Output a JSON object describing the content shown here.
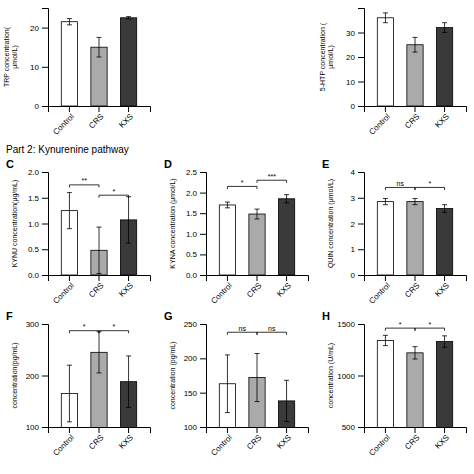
{
  "title": "Part 2: Kynurenine pathway",
  "chart_data": [
    {
      "type": "bar",
      "ylabel": "TRP concentration(\nµmol/L)",
      "categories": [
        "Control",
        "CRS",
        "KXS"
      ],
      "values": [
        21.5,
        15,
        22.5
      ],
      "errors": [
        0.8,
        2.5,
        0.3
      ],
      "colors": [
        "white",
        "#aaaaaa",
        "#3a3a3a"
      ],
      "ylim": [
        0,
        25
      ],
      "yticks": [
        0,
        10,
        20
      ]
    },
    {
      "type": "bar",
      "ylabel": "5-HTP concentration (\nµmol/L)",
      "categories": [
        "Control",
        "CRS",
        "KXS"
      ],
      "values": [
        36,
        25,
        32
      ],
      "errors": [
        2,
        3,
        2
      ],
      "colors": [
        "white",
        "#aaaaaa",
        "#3a3a3a"
      ],
      "ylim": [
        0,
        40
      ],
      "yticks": [
        0,
        10,
        20,
        30
      ]
    },
    {
      "type": "bar",
      "title": "C",
      "ylabel": "KYNU concentration(μg/mL)",
      "categories": [
        "Control",
        "CRS",
        "KXS"
      ],
      "values": [
        1.25,
        0.48,
        1.07
      ],
      "errors": [
        0.35,
        0.45,
        0.45
      ],
      "colors": [
        "white",
        "#aaaaaa",
        "#3a3a3a"
      ],
      "ylim": [
        0,
        2.0
      ],
      "yticks": [
        {
          "value": 0,
          "label": "0.0"
        },
        0.5,
        {
          "value": 1.0,
          "label": "1.0"
        },
        1.5,
        {
          "value": 2.0,
          "label": "2.0"
        }
      ],
      "annotations": [
        {
          "text": "**",
          "x1": "Control",
          "x2": "CRS",
          "y": 1.75
        },
        {
          "text": "*",
          "x1": "CRS",
          "x2": "KXS",
          "y": 1.55
        }
      ]
    },
    {
      "type": "bar",
      "title": "D",
      "ylabel": "KYNA concentration (μmol/L)",
      "categories": [
        "Control",
        "CRS",
        "KXS"
      ],
      "values": [
        1.7,
        1.48,
        1.85
      ],
      "errors": [
        0.07,
        0.12,
        0.1
      ],
      "colors": [
        "white",
        "#aaaaaa",
        "#3a3a3a"
      ],
      "ylim": [
        0,
        2.5
      ],
      "yticks": [
        {
          "value": 0,
          "label": "0.0"
        },
        0.5,
        {
          "value": 1.0,
          "label": "1.0"
        },
        1.5,
        {
          "value": 2.0,
          "label": "2.0"
        },
        2.5
      ],
      "annotations": [
        {
          "text": "*",
          "x1": "Control",
          "x2": "CRS",
          "y": 2.15
        },
        {
          "text": "***",
          "x1": "CRS",
          "x2": "KXS",
          "y": 2.3
        }
      ]
    },
    {
      "type": "bar",
      "title": "E",
      "ylabel": "QUIN concentration (μmol/L)",
      "categories": [
        "Control",
        "CRS",
        "KXS"
      ],
      "values": [
        2.85,
        2.85,
        2.58
      ],
      "errors": [
        0.12,
        0.12,
        0.15
      ],
      "colors": [
        "white",
        "#aaaaaa",
        "#3a3a3a"
      ],
      "ylim": [
        0,
        4
      ],
      "yticks": [
        0,
        1,
        2,
        3,
        4
      ],
      "annotations": [
        {
          "text": "ns",
          "x1": "Control",
          "x2": "CRS",
          "y": 3.4
        },
        {
          "text": "*",
          "x1": "CRS",
          "x2": "KXS",
          "y": 3.4
        }
      ]
    },
    {
      "type": "bar",
      "title": "F",
      "ylabel": "concentration(pg/mL)",
      "categories": [
        "Control",
        "CRS",
        "KXS"
      ],
      "values": [
        165,
        245,
        188
      ],
      "errors": [
        55,
        40,
        50
      ],
      "colors": [
        "white",
        "#aaaaaa",
        "#3a3a3a"
      ],
      "ylim": [
        100,
        300
      ],
      "yticks": [
        100,
        200,
        300
      ],
      "annotations": [
        {
          "text": "*",
          "x1": "Control",
          "x2": "CRS",
          "y": 287
        },
        {
          "text": "*",
          "x1": "CRS",
          "x2": "KXS",
          "y": 287
        }
      ]
    },
    {
      "type": "bar",
      "title": "G",
      "ylabel": "concentration (pg/mL)",
      "categories": [
        "Control",
        "CRS",
        "KXS"
      ],
      "values": [
        163,
        172,
        138
      ],
      "errors": [
        42,
        35,
        30
      ],
      "colors": [
        "white",
        "#aaaaaa",
        "#3a3a3a"
      ],
      "ylim": [
        100,
        250
      ],
      "yticks": [
        100,
        150,
        200,
        250
      ],
      "annotations": [
        {
          "text": "ns",
          "x1": "Control",
          "x2": "CRS",
          "y": 238
        },
        {
          "text": "ns",
          "x1": "CRS",
          "x2": "KXS",
          "y": 238
        }
      ]
    },
    {
      "type": "bar",
      "title": "H",
      "ylabel": "concentration (U/mL)",
      "categories": [
        "Control",
        "CRS",
        "KXS"
      ],
      "values": [
        1340,
        1220,
        1330
      ],
      "errors": [
        50,
        60,
        55
      ],
      "colors": [
        "white",
        "#aaaaaa",
        "#3a3a3a"
      ],
      "ylim": [
        500,
        1500
      ],
      "yticks": [
        500,
        1000,
        1500
      ],
      "annotations": [
        {
          "text": "*",
          "x1": "Control",
          "x2": "CRS",
          "y": 1460
        },
        {
          "text": "*",
          "x1": "CRS",
          "x2": "KXS",
          "y": 1460
        }
      ]
    }
  ]
}
